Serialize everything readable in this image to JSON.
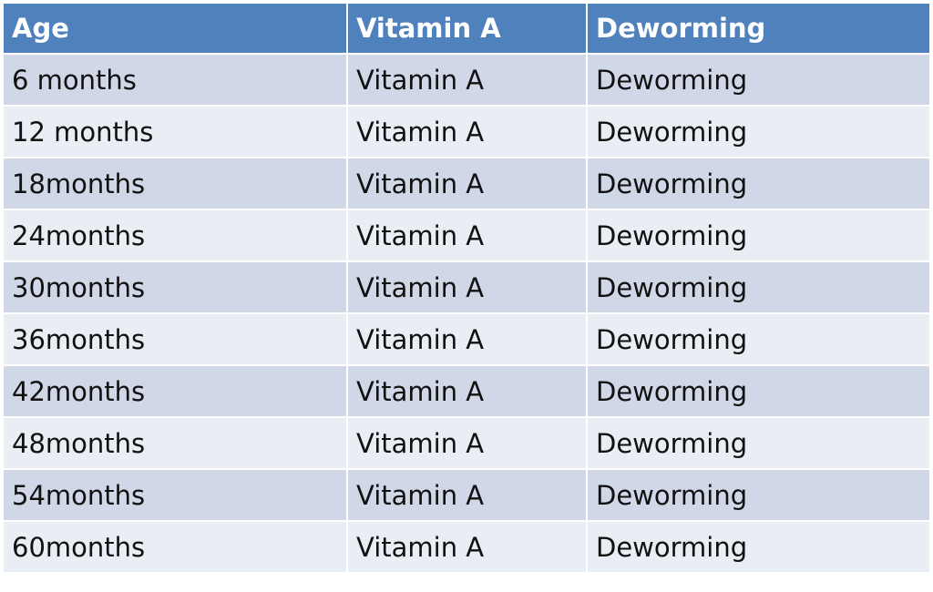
{
  "table": {
    "header": [
      "Age",
      "Vitamin A",
      "Deworming"
    ],
    "rows": [
      [
        "6 months",
        "Vitamin A",
        "Deworming"
      ],
      [
        "12 months",
        "Vitamin A",
        "Deworming"
      ],
      [
        "18months",
        "Vitamin A",
        "Deworming"
      ],
      [
        "24months",
        "Vitamin A",
        "Deworming"
      ],
      [
        "30months",
        "Vitamin A",
        "Deworming"
      ],
      [
        "36months",
        "Vitamin A",
        "Deworming"
      ],
      [
        "42months",
        "Vitamin A",
        "Deworming"
      ],
      [
        "48months",
        "Vitamin A",
        "Deworming"
      ],
      [
        "54months",
        "Vitamin A",
        "Deworming"
      ],
      [
        "60months",
        "Vitamin A",
        "Deworming"
      ]
    ]
  }
}
